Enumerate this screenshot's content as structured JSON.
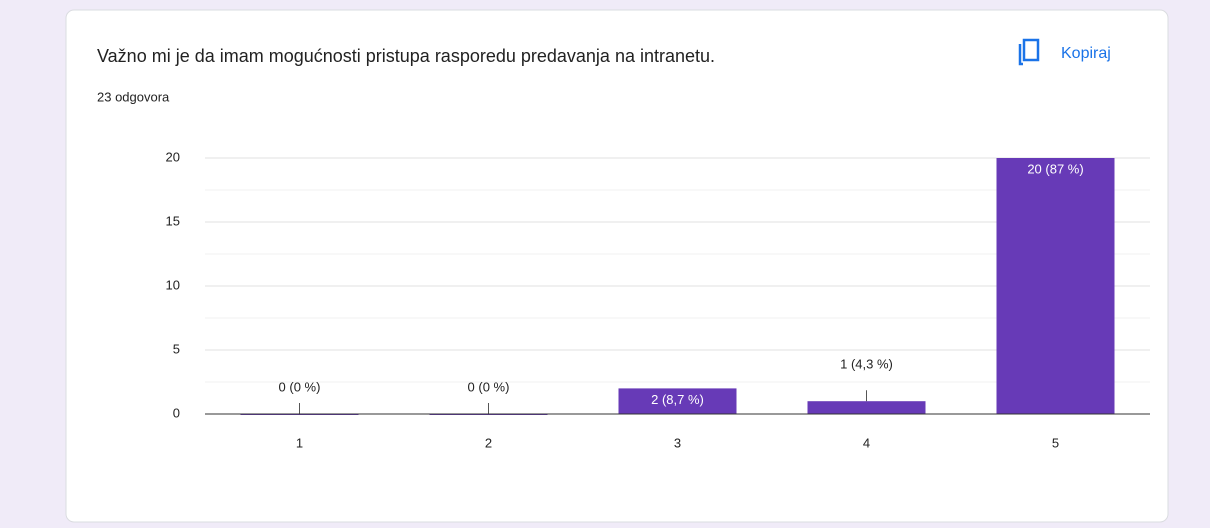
{
  "copy_label": "Kopiraj",
  "chart_data": {
    "type": "bar",
    "title": "Važno mi je da imam mogućnosti pristupa rasporedu predavanja na intranetu.",
    "subtitle": "23 odgovora",
    "categories": [
      "1",
      "2",
      "3",
      "4",
      "5"
    ],
    "values": [
      0,
      0,
      2,
      1,
      20
    ],
    "value_labels": [
      "0 (0 %)",
      "0 (0 %)",
      "2 (8,7 %)",
      "1 (4,3 %)",
      "20 (87 %)"
    ],
    "color": "#673ab7",
    "ylim": [
      0,
      20
    ],
    "yticks": [
      0,
      5,
      10,
      15,
      20
    ],
    "grid": true
  }
}
